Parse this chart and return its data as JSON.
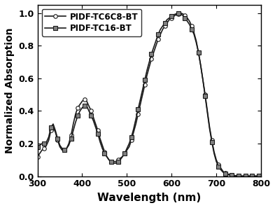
{
  "title": "",
  "xlabel": "Wavelength (nm)",
  "ylabel": "Normalized Absorption",
  "xlim": [
    300,
    800
  ],
  "ylim": [
    0,
    1.05
  ],
  "xticks": [
    300,
    400,
    500,
    600,
    700,
    800
  ],
  "yticks": [
    0.0,
    0.2,
    0.4,
    0.6,
    0.8,
    1.0
  ],
  "legend1": "PIDF-TC6C8-BT",
  "legend2": "PIDF-TC16-BT",
  "line_color": "#1a1a1a",
  "marker": "o",
  "markersize": 4,
  "series1_x": [
    300,
    305,
    310,
    315,
    320,
    325,
    330,
    335,
    340,
    345,
    350,
    355,
    360,
    365,
    370,
    375,
    380,
    385,
    390,
    395,
    400,
    405,
    410,
    415,
    420,
    425,
    430,
    435,
    440,
    445,
    450,
    455,
    460,
    465,
    470,
    475,
    480,
    485,
    490,
    495,
    500,
    505,
    510,
    515,
    520,
    525,
    530,
    535,
    540,
    545,
    550,
    555,
    560,
    565,
    570,
    575,
    580,
    585,
    590,
    595,
    600,
    605,
    610,
    615,
    620,
    625,
    630,
    635,
    640,
    645,
    650,
    655,
    660,
    665,
    670,
    675,
    680,
    685,
    690,
    695,
    700,
    705,
    710,
    715,
    720,
    725,
    730,
    735,
    740,
    745,
    750,
    755,
    760,
    765,
    770,
    775,
    780,
    785,
    790,
    795,
    800
  ],
  "series1_y": [
    0.12,
    0.14,
    0.16,
    0.17,
    0.19,
    0.22,
    0.28,
    0.3,
    0.27,
    0.22,
    0.18,
    0.16,
    0.16,
    0.17,
    0.2,
    0.25,
    0.32,
    0.38,
    0.42,
    0.44,
    0.46,
    0.47,
    0.46,
    0.43,
    0.4,
    0.36,
    0.32,
    0.28,
    0.23,
    0.19,
    0.15,
    0.12,
    0.1,
    0.09,
    0.09,
    0.09,
    0.1,
    0.11,
    0.12,
    0.14,
    0.16,
    0.18,
    0.22,
    0.27,
    0.32,
    0.38,
    0.44,
    0.5,
    0.56,
    0.62,
    0.67,
    0.72,
    0.76,
    0.8,
    0.84,
    0.87,
    0.9,
    0.92,
    0.94,
    0.96,
    0.97,
    0.98,
    0.99,
    0.995,
    1.0,
    0.995,
    0.985,
    0.97,
    0.95,
    0.92,
    0.88,
    0.83,
    0.76,
    0.68,
    0.59,
    0.5,
    0.4,
    0.3,
    0.22,
    0.15,
    0.1,
    0.07,
    0.05,
    0.03,
    0.02,
    0.015,
    0.01,
    0.007,
    0.005,
    0.003,
    0.002,
    0.001,
    0.001,
    0.001,
    0.001,
    0.001,
    0.001,
    0.001,
    0.001,
    0.001,
    0.001
  ],
  "series2_x": [
    300,
    305,
    310,
    315,
    320,
    325,
    330,
    335,
    340,
    345,
    350,
    355,
    360,
    365,
    370,
    375,
    380,
    385,
    390,
    395,
    400,
    405,
    410,
    415,
    420,
    425,
    430,
    435,
    440,
    445,
    450,
    455,
    460,
    465,
    470,
    475,
    480,
    485,
    490,
    495,
    500,
    505,
    510,
    515,
    520,
    525,
    530,
    535,
    540,
    545,
    550,
    555,
    560,
    565,
    570,
    575,
    580,
    585,
    590,
    595,
    600,
    605,
    610,
    615,
    620,
    625,
    630,
    635,
    640,
    645,
    650,
    655,
    660,
    665,
    670,
    675,
    680,
    685,
    690,
    695,
    700,
    705,
    710,
    715,
    720,
    725,
    730,
    735,
    740,
    745,
    750,
    755,
    760,
    765,
    770,
    775,
    780,
    785,
    790,
    795,
    800
  ],
  "series2_y": [
    0.18,
    0.19,
    0.2,
    0.2,
    0.21,
    0.24,
    0.3,
    0.32,
    0.28,
    0.23,
    0.19,
    0.17,
    0.16,
    0.17,
    0.19,
    0.23,
    0.28,
    0.33,
    0.37,
    0.4,
    0.42,
    0.43,
    0.43,
    0.4,
    0.37,
    0.34,
    0.3,
    0.26,
    0.21,
    0.17,
    0.14,
    0.12,
    0.1,
    0.09,
    0.08,
    0.08,
    0.09,
    0.1,
    0.12,
    0.14,
    0.17,
    0.2,
    0.24,
    0.29,
    0.35,
    0.41,
    0.47,
    0.53,
    0.59,
    0.65,
    0.7,
    0.75,
    0.79,
    0.83,
    0.87,
    0.9,
    0.92,
    0.94,
    0.96,
    0.97,
    0.98,
    0.99,
    0.995,
    1.0,
    0.995,
    0.985,
    0.97,
    0.95,
    0.93,
    0.9,
    0.87,
    0.82,
    0.76,
    0.68,
    0.59,
    0.49,
    0.39,
    0.29,
    0.21,
    0.14,
    0.09,
    0.06,
    0.04,
    0.025,
    0.015,
    0.01,
    0.007,
    0.005,
    0.003,
    0.002,
    0.001,
    0.001,
    0.001,
    0.001,
    0.001,
    0.001,
    0.001,
    0.001,
    0.001,
    0.001,
    0.001
  ]
}
